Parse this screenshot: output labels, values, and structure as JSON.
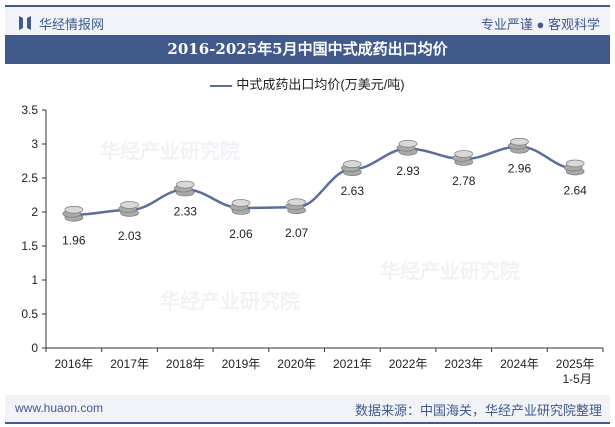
{
  "header": {
    "brand": "华经情报网",
    "slogan": "专业严谨 ● 客观科学"
  },
  "title": "2016-2025年5月中国中式成药出口均价",
  "footer": {
    "url": "www.huaon.com",
    "source": "数据来源：中国海关，华经产业研究院整理"
  },
  "watermark": "华经产业研究院",
  "colors": {
    "line": "#5b6f9c",
    "title_bg": "#42598c",
    "accent": "#3f5a8f"
  },
  "chart_data": {
    "type": "line",
    "title": "2016-2025年5月中国中式成药出口均价",
    "categories": [
      "2016年",
      "2017年",
      "2018年",
      "2019年",
      "2020年",
      "2021年",
      "2022年",
      "2023年",
      "2024年",
      "2025年\n1-5月"
    ],
    "series": [
      {
        "name": "中式成药出口均价(万美元/吨)",
        "values": [
          1.96,
          2.03,
          2.33,
          2.06,
          2.07,
          2.63,
          2.93,
          2.78,
          2.96,
          2.64
        ]
      }
    ],
    "ylim": [
      0,
      3.5
    ],
    "yticks": [
      "0",
      "0.5",
      "1",
      "1.5",
      "2",
      "2.5",
      "3",
      "3.5"
    ],
    "legend": "top-center",
    "grid": false
  }
}
